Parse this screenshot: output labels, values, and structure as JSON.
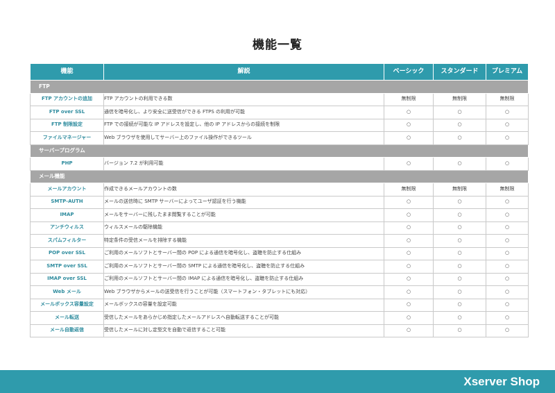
{
  "title": "機能一覧",
  "headers": {
    "feature": "機能",
    "description": "解説",
    "basic": "ベーシック",
    "standard": "スタンダード",
    "premium": "プレミアム"
  },
  "sections": [
    {
      "name": "FTP",
      "rows": [
        {
          "feature": "FTP アカウントの追加",
          "description": "FTP アカウントの利用できる数",
          "basic": "無制限",
          "standard": "無制限",
          "premium": "無制限"
        },
        {
          "feature": "FTP over SSL",
          "description": "通信を暗号化し、より安全に送受信ができる FTPS の利用が可能",
          "basic": "○",
          "standard": "○",
          "premium": "○"
        },
        {
          "feature": "FTP 制限設定",
          "description": "FTP での接続が可能な IP アドレスを設定し、他の IP アドレスからの接続を制限",
          "basic": "○",
          "standard": "○",
          "premium": "○"
        },
        {
          "feature": "ファイルマネージャー",
          "description": "Web ブラウザを使用してサーバー上のファイル操作ができるツール",
          "basic": "○",
          "standard": "○",
          "premium": "○"
        }
      ]
    },
    {
      "name": "サーバープログラム",
      "rows": [
        {
          "feature": "PHP",
          "description": "バージョン 7.2 が利用可能",
          "basic": "○",
          "standard": "○",
          "premium": "○"
        }
      ]
    },
    {
      "name": "メール機能",
      "rows": [
        {
          "feature": "メールアカウント",
          "description": "作成できるメールアカウントの数",
          "basic": "無制限",
          "standard": "無制限",
          "premium": "無制限"
        },
        {
          "feature": "SMTP-AUTH",
          "description": "メールの送信時に SMTP サーバーによってユーザ認証を行う機能",
          "basic": "○",
          "standard": "○",
          "premium": "○"
        },
        {
          "feature": "IMAP",
          "description": "メールをサーバーに残したまま閲覧することが可能",
          "basic": "○",
          "standard": "○",
          "premium": "○"
        },
        {
          "feature": "アンチウィルス",
          "description": "ウィルスメールの駆除機能",
          "basic": "○",
          "standard": "○",
          "premium": "○"
        },
        {
          "feature": "スパムフィルター",
          "description": "特定条件の受信メールを排除する機能",
          "basic": "○",
          "standard": "○",
          "premium": "○"
        },
        {
          "feature": "POP over SSL",
          "description": "ご利用のメールソフトとサーバー間の POP による通信を暗号化し、盗聴を防止する仕組み",
          "basic": "○",
          "standard": "○",
          "premium": "○"
        },
        {
          "feature": "SMTP over SSL",
          "description": "ご利用のメールソフトとサーバー間の SMTP による通信を暗号化し、盗聴を防止する仕組み",
          "basic": "○",
          "standard": "○",
          "premium": "○"
        },
        {
          "feature": "IMAP over SSL",
          "description": "ご利用のメールソフトとサーバー間の IMAP による通信を暗号化し、盗聴を防止する仕組み",
          "basic": "○",
          "standard": "○",
          "premium": "○"
        },
        {
          "feature": "Web メール",
          "description": "Web ブラウザからメールの送受信を行うことが可能（スマートフォン・タブレットにも対応）",
          "basic": "○",
          "standard": "○",
          "premium": "○"
        },
        {
          "feature": "メールボックス容量設定",
          "description": "メールボックスの容量を設定可能",
          "basic": "○",
          "standard": "○",
          "premium": "○"
        },
        {
          "feature": "メール転送",
          "description": "受信したメールをあらかじめ指定したメールアドレスへ自動転送することが可能",
          "basic": "○",
          "standard": "○",
          "premium": "○"
        },
        {
          "feature": "メール自動返信",
          "description": "受信したメールに対し定型文を自動で返信すること可能",
          "basic": "○",
          "standard": "○",
          "premium": "○"
        }
      ]
    }
  ],
  "footer": {
    "logo": "Xserver Shop"
  },
  "colors": {
    "accent": "#2f9bac",
    "section": "#a6a6a6"
  }
}
